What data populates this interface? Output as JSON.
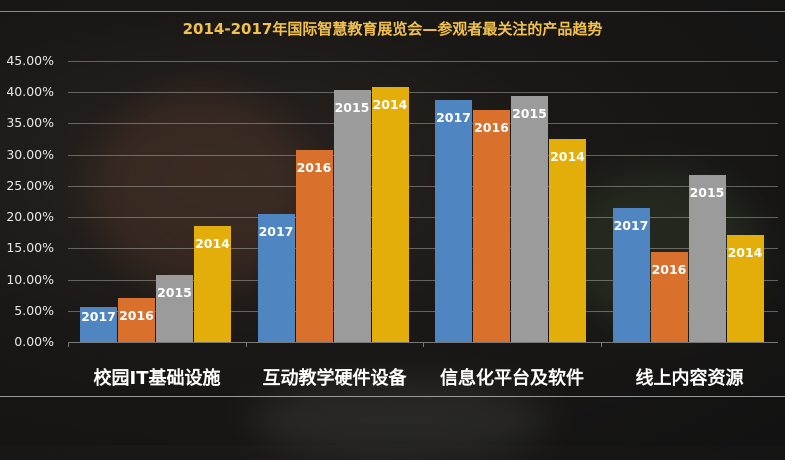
{
  "title": "2014-2017年国际智慧教育展览会—参观者最关注的产品趋势",
  "colors": {
    "2017": "#4f86c1",
    "2016": "#d9702c",
    "2015": "#9b9b9b",
    "2014": "#e3ad0a",
    "title": "#f2c14e"
  },
  "y_ticks": [
    "45.00%",
    "40.00%",
    "35.00%",
    "30.00%",
    "25.00%",
    "20.00%",
    "15.00%",
    "10.00%",
    "5.00%",
    "0.00%"
  ],
  "chart_data": {
    "type": "bar",
    "title": "2014-2017年国际智慧教育展览会—参观者最关注的产品趋势",
    "xlabel": "",
    "ylabel": "",
    "ylim": [
      0,
      45
    ],
    "y_format": "percent",
    "grid": true,
    "legend": "none (series labels drawn inside bars)",
    "categories": [
      "校园IT基础设施",
      "互动教学硬件设备",
      "信息化平台及软件",
      "线上内容资源"
    ],
    "series": [
      {
        "name": "2017",
        "values": [
          5.6,
          20.5,
          38.8,
          21.5
        ]
      },
      {
        "name": "2016",
        "values": [
          7.0,
          30.8,
          37.2,
          14.4
        ]
      },
      {
        "name": "2015",
        "values": [
          10.7,
          40.4,
          39.4,
          26.8
        ]
      },
      {
        "name": "2014",
        "values": [
          18.6,
          40.9,
          32.5,
          17.1
        ]
      }
    ]
  }
}
